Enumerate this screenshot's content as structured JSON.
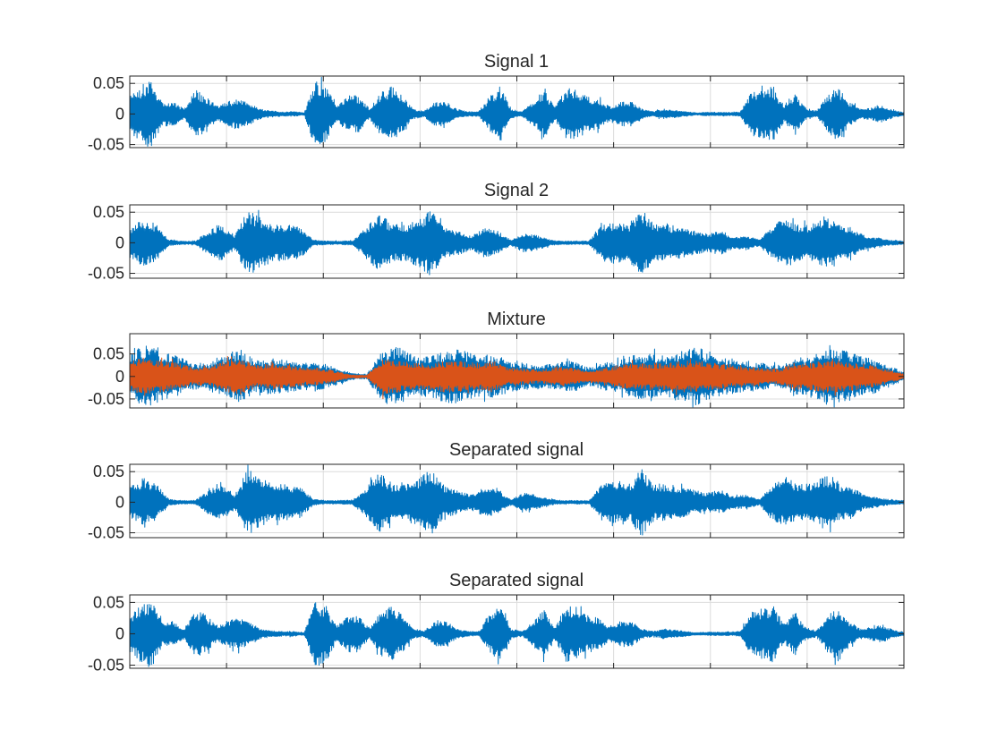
{
  "chart_data": [
    {
      "type": "line",
      "title": "Signal 1",
      "ylim": [
        -0.055,
        0.062
      ],
      "yticks": [
        -0.05,
        0,
        0.05
      ],
      "ytick_labels": [
        "-0.05",
        "0",
        "0.05"
      ],
      "grid": true,
      "color": "#0072BD",
      "envelope": [
        0.03,
        0.045,
        0.055,
        0.02,
        0.02,
        0.008,
        0.04,
        0.03,
        0.012,
        0.022,
        0.025,
        0.018,
        0.008,
        0.005,
        0.004,
        0.004,
        0.002,
        0.055,
        0.045,
        0.012,
        0.03,
        0.03,
        0.008,
        0.035,
        0.045,
        0.03,
        0.008,
        0.005,
        0.02,
        0.02,
        0.008,
        0.004,
        0.004,
        0.03,
        0.045,
        0.008,
        0.004,
        0.02,
        0.04,
        0.01,
        0.045,
        0.04,
        0.03,
        0.025,
        0.012,
        0.02,
        0.02,
        0.008,
        0.004,
        0.008,
        0.006,
        0.004,
        0.002,
        0.003,
        0.003,
        0.003,
        0.004,
        0.035,
        0.04,
        0.045,
        0.015,
        0.035,
        0.01,
        0.005,
        0.03,
        0.045,
        0.02,
        0.008,
        0.01,
        0.015,
        0.006,
        0.003
      ]
    },
    {
      "type": "line",
      "title": "Signal 2",
      "ylim": [
        -0.058,
        0.062
      ],
      "yticks": [
        -0.05,
        0,
        0.05
      ],
      "ytick_labels": [
        "-0.05",
        "0",
        "0.05"
      ],
      "grid": true,
      "color": "#0072BD",
      "envelope": [
        0.025,
        0.04,
        0.03,
        0.005,
        0.003,
        0.003,
        0.02,
        0.03,
        0.012,
        0.055,
        0.04,
        0.03,
        0.03,
        0.025,
        0.005,
        0.003,
        0.003,
        0.004,
        0.025,
        0.05,
        0.03,
        0.03,
        0.04,
        0.055,
        0.025,
        0.02,
        0.012,
        0.025,
        0.02,
        0.005,
        0.015,
        0.012,
        0.005,
        0.003,
        0.003,
        0.003,
        0.03,
        0.035,
        0.03,
        0.055,
        0.03,
        0.03,
        0.025,
        0.02,
        0.015,
        0.02,
        0.01,
        0.012,
        0.005,
        0.03,
        0.04,
        0.03,
        0.03,
        0.045,
        0.03,
        0.025,
        0.012,
        0.008,
        0.004,
        0.003
      ]
    },
    {
      "type": "line",
      "title": "Mixture",
      "ylim": [
        -0.07,
        0.095
      ],
      "yticks": [
        -0.05,
        0,
        0.05
      ],
      "ytick_labels": [
        "-0.05",
        "0",
        "0.05"
      ],
      "grid": true,
      "series": [
        {
          "color": "#0072BD",
          "envelope": [
            0.05,
            0.07,
            0.055,
            0.045,
            0.03,
            0.03,
            0.045,
            0.06,
            0.035,
            0.04,
            0.035,
            0.03,
            0.03,
            0.02,
            0.008,
            0.005,
            0.06,
            0.065,
            0.045,
            0.045,
            0.06,
            0.06,
            0.045,
            0.05,
            0.035,
            0.03,
            0.025,
            0.03,
            0.035,
            0.02,
            0.03,
            0.035,
            0.05,
            0.05,
            0.045,
            0.06,
            0.065,
            0.045,
            0.04,
            0.035,
            0.03,
            0.025,
            0.04,
            0.045,
            0.06,
            0.06,
            0.05,
            0.04,
            0.025,
            0.01
          ]
        },
        {
          "color": "#D95319",
          "envelope": [
            0.035,
            0.04,
            0.035,
            0.03,
            0.02,
            0.02,
            0.035,
            0.04,
            0.025,
            0.03,
            0.025,
            0.02,
            0.02,
            0.012,
            0.004,
            0.003,
            0.04,
            0.035,
            0.03,
            0.03,
            0.035,
            0.035,
            0.03,
            0.035,
            0.02,
            0.018,
            0.015,
            0.02,
            0.02,
            0.012,
            0.02,
            0.025,
            0.03,
            0.03,
            0.03,
            0.035,
            0.035,
            0.03,
            0.025,
            0.02,
            0.02,
            0.015,
            0.03,
            0.03,
            0.035,
            0.035,
            0.03,
            0.025,
            0.015,
            0.006
          ]
        }
      ]
    },
    {
      "type": "line",
      "title": "Separated signal",
      "ylim": [
        -0.058,
        0.062
      ],
      "yticks": [
        -0.05,
        0,
        0.05
      ],
      "ytick_labels": [
        "-0.05",
        "0",
        "0.05"
      ],
      "grid": true,
      "color": "#0072BD",
      "envelope": [
        0.025,
        0.04,
        0.03,
        0.005,
        0.003,
        0.003,
        0.02,
        0.03,
        0.012,
        0.055,
        0.04,
        0.03,
        0.03,
        0.025,
        0.005,
        0.003,
        0.003,
        0.004,
        0.025,
        0.05,
        0.03,
        0.03,
        0.04,
        0.055,
        0.025,
        0.02,
        0.012,
        0.025,
        0.02,
        0.005,
        0.015,
        0.012,
        0.005,
        0.003,
        0.003,
        0.003,
        0.03,
        0.035,
        0.03,
        0.055,
        0.03,
        0.03,
        0.025,
        0.02,
        0.015,
        0.02,
        0.01,
        0.012,
        0.005,
        0.03,
        0.04,
        0.03,
        0.03,
        0.045,
        0.03,
        0.025,
        0.012,
        0.008,
        0.004,
        0.003
      ]
    },
    {
      "type": "line",
      "title": "Separated signal",
      "ylim": [
        -0.055,
        0.062
      ],
      "yticks": [
        -0.05,
        0,
        0.05
      ],
      "ytick_labels": [
        "-0.05",
        "0",
        "0.05"
      ],
      "grid": true,
      "color": "#0072BD",
      "envelope": [
        0.03,
        0.045,
        0.055,
        0.02,
        0.02,
        0.008,
        0.04,
        0.03,
        0.012,
        0.022,
        0.025,
        0.018,
        0.008,
        0.005,
        0.004,
        0.004,
        0.002,
        0.055,
        0.045,
        0.012,
        0.03,
        0.03,
        0.008,
        0.035,
        0.045,
        0.03,
        0.008,
        0.005,
        0.02,
        0.02,
        0.008,
        0.004,
        0.004,
        0.03,
        0.045,
        0.008,
        0.004,
        0.02,
        0.04,
        0.01,
        0.045,
        0.04,
        0.03,
        0.025,
        0.012,
        0.02,
        0.02,
        0.008,
        0.004,
        0.008,
        0.006,
        0.004,
        0.002,
        0.003,
        0.003,
        0.003,
        0.004,
        0.035,
        0.04,
        0.045,
        0.015,
        0.035,
        0.01,
        0.005,
        0.03,
        0.045,
        0.02,
        0.008,
        0.01,
        0.015,
        0.006,
        0.003
      ]
    }
  ]
}
